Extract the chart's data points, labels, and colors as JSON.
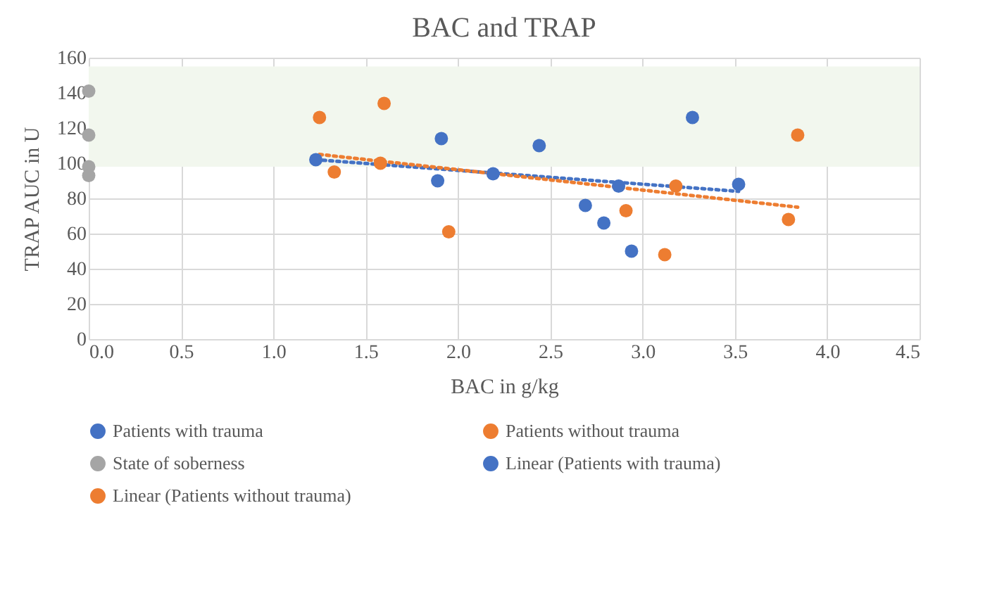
{
  "chart_data": {
    "type": "scatter",
    "title": "BAC and TRAP",
    "xlabel": "BAC in g/kg",
    "ylabel": "TRAP AUC in U",
    "xlim": [
      0,
      4.5
    ],
    "xticks": [
      {
        "value": 0,
        "label": "0.0"
      },
      0.5,
      {
        "value": 1,
        "label": "1.0"
      },
      1.5,
      {
        "value": 2,
        "label": "2.0"
      },
      2.5,
      {
        "value": 3,
        "label": "3.0"
      },
      3.5,
      {
        "value": 4,
        "label": "4.0"
      },
      4.5
    ],
    "ylim": [
      0,
      160
    ],
    "yticks": [
      0,
      20,
      40,
      60,
      80,
      100,
      120,
      140,
      160
    ],
    "grid": true,
    "legend": "bottom",
    "marker": "circle",
    "bands": [
      {
        "axis": "y",
        "from": 98,
        "to": 155,
        "color": "#f2f7ee"
      }
    ],
    "series": [
      {
        "name": "Patients with trauma",
        "type": "scatter",
        "color": "#4472c4",
        "x": [
          1.23,
          1.89,
          1.91,
          2.19,
          2.44,
          2.69,
          2.79,
          2.87,
          2.94,
          3.27,
          3.52
        ],
        "values": [
          102,
          90,
          114,
          94,
          110,
          76,
          66,
          87,
          50,
          126,
          88
        ]
      },
      {
        "name": "Patients without trauma",
        "type": "scatter",
        "color": "#ed7d31",
        "x": [
          1.25,
          1.33,
          1.58,
          1.6,
          1.95,
          2.91,
          3.12,
          3.18,
          3.79,
          3.84
        ],
        "values": [
          126,
          95,
          100,
          134,
          61,
          73,
          48,
          87,
          68,
          116
        ]
      },
      {
        "name": "State of soberness",
        "type": "scatter",
        "color": "#a5a5a5",
        "x": [
          0,
          0,
          0,
          0
        ],
        "values": [
          141,
          116,
          98,
          93
        ]
      },
      {
        "name": "Linear (Patients with trauma)",
        "type": "line",
        "marker": "none",
        "line_style": "dotted",
        "color": "#4472c4",
        "x": [
          1.23,
          3.52
        ],
        "values": [
          102,
          84
        ]
      },
      {
        "name": "Linear (Patients without trauma)",
        "type": "line",
        "marker": "none",
        "line_style": "dotted",
        "color": "#ed7d31",
        "x": [
          1.25,
          3.84
        ],
        "values": [
          105,
          75
        ]
      }
    ]
  }
}
